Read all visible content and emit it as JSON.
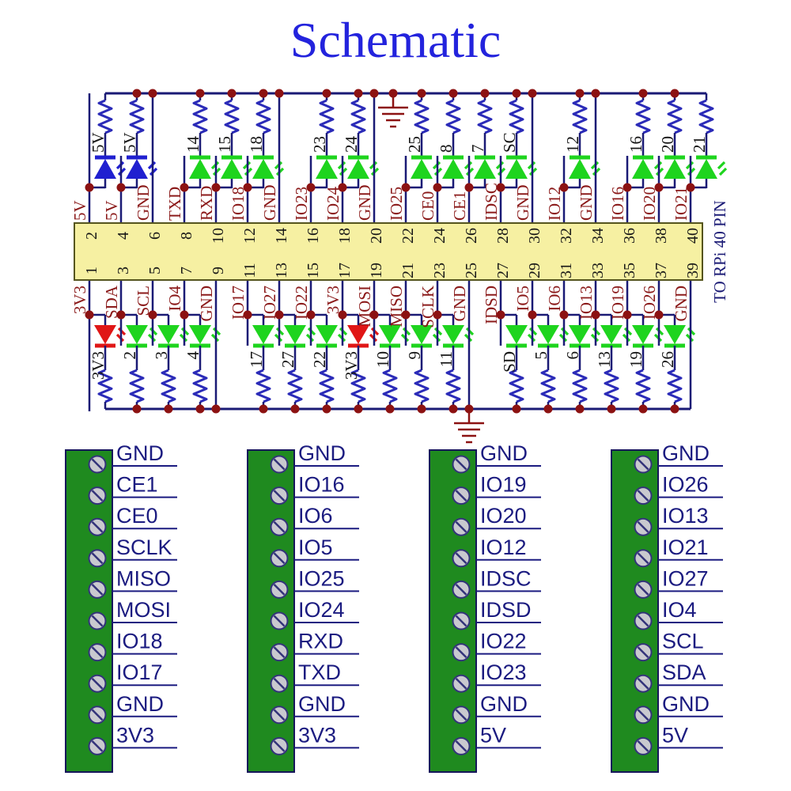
{
  "title": "Schematic",
  "colors": {
    "title": "#2323dd",
    "wire": "#1a1a75",
    "resistor": "#2b2bb8",
    "junction": "#8c1212",
    "net_label": "#8b1a1a",
    "black_label": "#161616",
    "led_green": "#1ed41e",
    "led_blue": "#2020d0",
    "led_red": "#e01616",
    "connector_fill": "#f6f0a2",
    "connector_border": "#55551e",
    "ground": "#8c1212",
    "terminal_fill": "#1f8a1f",
    "terminal_border": "#16165a",
    "screw_fill": "#c9c9cf",
    "screw_border": "#33337a",
    "terminal_label": "#1b1b80",
    "background": "#ffffff"
  },
  "connector": {
    "label": "TO RPi 40 PIN"
  },
  "top_row": [
    {
      "pin": "2",
      "net": "5V",
      "led": "5V",
      "color": "blue",
      "stub": true
    },
    {
      "pin": "4",
      "net": "5V",
      "led": "5V",
      "color": "blue"
    },
    {
      "pin": "6",
      "net": "GND"
    },
    {
      "pin": "8",
      "net": "TXD",
      "led": "14",
      "color": "green"
    },
    {
      "pin": "10",
      "net": "RXD",
      "led": "15",
      "color": "green"
    },
    {
      "pin": "12",
      "net": "IO18",
      "led": "18",
      "color": "green"
    },
    {
      "pin": "14",
      "net": "GND"
    },
    {
      "pin": "16",
      "net": "IO23",
      "led": "23",
      "color": "green"
    },
    {
      "pin": "18",
      "net": "IO24",
      "led": "24",
      "color": "green"
    },
    {
      "pin": "20",
      "net": "GND",
      "ground_symbol": true
    },
    {
      "pin": "22",
      "net": "IO25",
      "led": "25",
      "color": "green"
    },
    {
      "pin": "24",
      "net": "CE0",
      "led": "8",
      "color": "green"
    },
    {
      "pin": "26",
      "net": "CE1",
      "led": "7",
      "color": "green"
    },
    {
      "pin": "28",
      "net": "IDSC",
      "led": "SC",
      "color": "green"
    },
    {
      "pin": "30",
      "net": "GND"
    },
    {
      "pin": "32",
      "net": "IO12",
      "led": "12",
      "color": "green"
    },
    {
      "pin": "34",
      "net": "GND"
    },
    {
      "pin": "36",
      "net": "IO16",
      "led": "16",
      "color": "green"
    },
    {
      "pin": "38",
      "net": "IO20",
      "led": "20",
      "color": "green"
    },
    {
      "pin": "40",
      "net": "IO21",
      "led": "21",
      "color": "green"
    }
  ],
  "bottom_row": [
    {
      "pin": "1",
      "net": "3V3",
      "led": "3V3",
      "color": "red",
      "stub": true
    },
    {
      "pin": "3",
      "net": "SDA",
      "led": "2",
      "color": "green"
    },
    {
      "pin": "5",
      "net": "SCL",
      "led": "3",
      "color": "green"
    },
    {
      "pin": "7",
      "net": "IO4",
      "led": "4",
      "color": "green"
    },
    {
      "pin": "9",
      "net": "GND"
    },
    {
      "pin": "11",
      "net": "IO17",
      "led": "17",
      "color": "green"
    },
    {
      "pin": "13",
      "net": "IO27",
      "led": "27",
      "color": "green"
    },
    {
      "pin": "15",
      "net": "IO22",
      "led": "22",
      "color": "green"
    },
    {
      "pin": "17",
      "net": "3V3",
      "led": "3V3",
      "color": "red"
    },
    {
      "pin": "19",
      "net": "MOSI",
      "led": "10",
      "color": "green"
    },
    {
      "pin": "21",
      "net": "MISO",
      "led": "9",
      "color": "green"
    },
    {
      "pin": "23",
      "net": "SCLK",
      "led": "11",
      "color": "green"
    },
    {
      "pin": "25",
      "net": "GND",
      "ground_symbol": true
    },
    {
      "pin": "27",
      "net": "IDSD",
      "led": "SD",
      "color": "green"
    },
    {
      "pin": "29",
      "net": "IO5",
      "led": "5",
      "color": "green"
    },
    {
      "pin": "31",
      "net": "IO6",
      "led": "6",
      "color": "green"
    },
    {
      "pin": "33",
      "net": "IO13",
      "led": "13",
      "color": "green"
    },
    {
      "pin": "35",
      "net": "IO19",
      "led": "19",
      "color": "green"
    },
    {
      "pin": "37",
      "net": "IO26",
      "led": "26",
      "color": "green"
    },
    {
      "pin": "39",
      "net": "GND"
    }
  ],
  "terminal_blocks": [
    {
      "labels": [
        "GND",
        "CE1",
        "CE0",
        "SCLK",
        "MISO",
        "MOSI",
        "IO18",
        "IO17",
        "GND",
        "3V3"
      ]
    },
    {
      "labels": [
        "GND",
        "IO16",
        "IO6",
        "IO5",
        "IO25",
        "IO24",
        "RXD",
        "TXD",
        "GND",
        "3V3"
      ]
    },
    {
      "labels": [
        "GND",
        "IO19",
        "IO20",
        "IO12",
        "IDSC",
        "IDSD",
        "IO22",
        "IO23",
        "GND",
        "5V"
      ]
    },
    {
      "labels": [
        "GND",
        "IO26",
        "IO13",
        "IO21",
        "IO27",
        "IO4",
        "SCL",
        "SDA",
        "GND",
        "5V"
      ]
    }
  ]
}
